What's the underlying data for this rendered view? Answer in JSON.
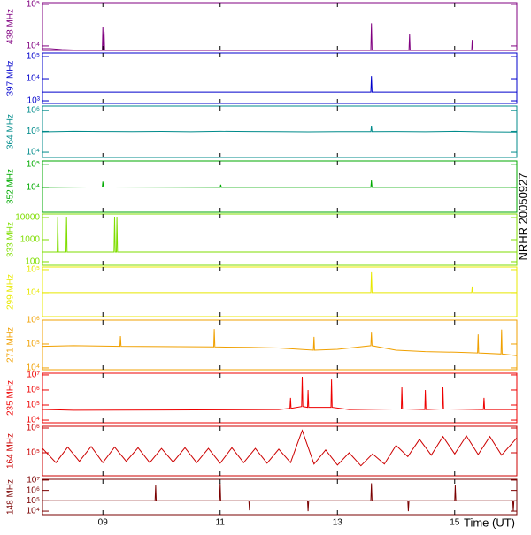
{
  "side_label": "NRHR 20050927",
  "chart_data": [
    {
      "type": "line",
      "ylabel": "438 MHz",
      "color": "#800080",
      "log": true,
      "xlim": [
        7.97,
        16.06
      ],
      "ylim": [
        7800,
        110000
      ],
      "yticks": [
        {
          "value": 10000,
          "label": "10⁴"
        },
        {
          "value": 100000,
          "label": "10⁵"
        }
      ],
      "x": [
        7.97,
        8.1,
        8.3,
        8.5,
        8.99,
        9.0,
        9.01,
        9.02,
        9.03,
        11,
        13.57,
        13.58,
        13.59,
        14.22,
        14.23,
        14.24,
        15.29,
        15.3,
        15.31,
        16.06
      ],
      "values": [
        8600,
        8600,
        8200,
        8000,
        8000,
        29000,
        8000,
        22000,
        8000,
        8000,
        8000,
        35000,
        8000,
        8000,
        19000,
        8000,
        8000,
        14000,
        8000,
        8000
      ]
    },
    {
      "type": "line",
      "ylabel": "397 MHz",
      "color": "#0000cc",
      "log": true,
      "xlim": [
        7.97,
        16.06
      ],
      "ylim": [
        760,
        145000
      ],
      "yticks": [
        {
          "value": 1000,
          "label": "10³"
        },
        {
          "value": 10000,
          "label": "10⁴"
        },
        {
          "value": 100000,
          "label": "10⁵"
        }
      ],
      "x": [
        7.97,
        13.57,
        13.58,
        13.59,
        16.06
      ],
      "values": [
        2500,
        2500,
        13000,
        2500,
        2500
      ]
    },
    {
      "type": "line",
      "ylabel": "364 MHz",
      "color": "#008b8b",
      "log": true,
      "xlim": [
        7.97,
        16.06
      ],
      "ylim": [
        5600,
        1600000
      ],
      "yticks": [
        {
          "value": 10000,
          "label": "10⁴"
        },
        {
          "value": 100000,
          "label": "10⁵"
        },
        {
          "value": 1000000,
          "label": "10⁶"
        }
      ],
      "x": [
        7.97,
        8.5,
        9.0,
        9.5,
        10,
        10.5,
        11,
        11.5,
        12,
        12.5,
        13,
        13.57,
        13.58,
        13.59,
        14,
        14.5,
        15,
        15.5,
        16.06
      ],
      "values": [
        95000,
        100000,
        98000,
        97000,
        99000,
        96000,
        100000,
        98000,
        97000,
        95000,
        97000,
        97000,
        180000,
        97000,
        98000,
        96000,
        100000,
        95000,
        93000
      ]
    },
    {
      "type": "line",
      "ylabel": "352 MHz",
      "color": "#00aa00",
      "log": true,
      "xlim": [
        7.97,
        16.06
      ],
      "ylim": [
        840,
        140000
      ],
      "yticks": [
        {
          "value": 10000,
          "label": "10⁴"
        },
        {
          "value": 100000,
          "label": "10⁵"
        }
      ],
      "x": [
        7.97,
        8.99,
        9.0,
        9.01,
        11.0,
        11.01,
        11.02,
        13.57,
        13.58,
        13.59,
        16.06
      ],
      "values": [
        10000,
        10500,
        18000,
        10500,
        10000,
        13000,
        10000,
        10000,
        20000,
        10000,
        10000
      ]
    },
    {
      "type": "line",
      "ylabel": "333 MHz",
      "color": "#7fdd00",
      "log": true,
      "xlim": [
        7.97,
        16.06
      ],
      "ylim": [
        69,
        14500
      ],
      "yticks": [
        100,
        1000,
        10000
      ],
      "x": [
        7.97,
        8.22,
        8.23,
        8.24,
        8.37,
        8.38,
        8.39,
        9.19,
        9.2,
        9.21,
        9.23,
        9.24,
        9.25,
        16.06
      ],
      "values": [
        275,
        275,
        11000,
        275,
        275,
        11000,
        275,
        275,
        11000,
        275,
        275,
        11000,
        275,
        275
      ]
    },
    {
      "type": "line",
      "ylabel": "299 MHz",
      "color": "#e8e800",
      "log": true,
      "xlim": [
        7.97,
        16.06
      ],
      "ylim": [
        910,
        130000
      ],
      "yticks": [
        {
          "value": 10000,
          "label": "10⁴"
        },
        {
          "value": 100000,
          "label": "10⁵"
        }
      ],
      "x": [
        7.97,
        13.57,
        13.58,
        13.59,
        15.29,
        15.3,
        15.31,
        16.06
      ],
      "values": [
        10000,
        10000,
        77000,
        10000,
        10000,
        18600,
        10000,
        10000
      ]
    },
    {
      "type": "line",
      "ylabel": "271 MHz",
      "color": "#f0a000",
      "log": true,
      "xlim": [
        7.97,
        16.06
      ],
      "ylim": [
        8400,
        1000000
      ],
      "yticks": [
        {
          "value": 10000,
          "label": "10⁴"
        },
        {
          "value": 100000,
          "label": "10⁵"
        },
        {
          "value": 1000000,
          "label": "10⁶"
        }
      ],
      "x": [
        7.97,
        8.5,
        9.29,
        9.3,
        9.31,
        10,
        10.89,
        10.9,
        10.91,
        11.5,
        12,
        12.59,
        12.6,
        12.61,
        13,
        13.57,
        13.58,
        13.59,
        14,
        14.5,
        15,
        15.39,
        15.4,
        15.41,
        15.79,
        15.8,
        15.81,
        16.06
      ],
      "values": [
        80000,
        85000,
        80000,
        215000,
        80000,
        78000,
        75000,
        420000,
        75000,
        72000,
        68000,
        55000,
        200000,
        55000,
        60000,
        85000,
        300000,
        85000,
        55000,
        48000,
        45000,
        42000,
        250000,
        42000,
        38000,
        400000,
        38000,
        32000
      ]
    },
    {
      "type": "line",
      "ylabel": "235 MHz",
      "color": "#ee0000",
      "log": true,
      "xlim": [
        7.97,
        16.06
      ],
      "ylim": [
        6700,
        13000000
      ],
      "yticks": [
        {
          "value": 10000,
          "label": "10⁴"
        },
        {
          "value": 100000,
          "label": "10⁵"
        },
        {
          "value": 1000000,
          "label": "10⁶"
        },
        {
          "value": 10000000,
          "label": "10⁷"
        }
      ],
      "x": [
        7.97,
        8.5,
        10,
        12,
        12.19,
        12.2,
        12.21,
        12.39,
        12.4,
        12.41,
        12.49,
        12.5,
        12.51,
        12.89,
        12.9,
        12.91,
        13.2,
        14.09,
        14.1,
        14.11,
        14.49,
        14.5,
        14.51,
        14.79,
        14.8,
        14.81,
        15.49,
        15.5,
        15.51,
        16.06
      ],
      "values": [
        51000,
        45000,
        47000,
        50000,
        60000,
        300000,
        60000,
        80000,
        7600000,
        80000,
        70000,
        1000000,
        70000,
        70000,
        5000000,
        70000,
        50000,
        55000,
        1500000,
        55000,
        50000,
        1000000,
        50000,
        55000,
        1500000,
        55000,
        50000,
        300000,
        50000,
        50000
      ]
    },
    {
      "type": "line",
      "ylabel": "164 MHz",
      "color": "#cc0000",
      "log": true,
      "xlim": [
        7.97,
        16.06
      ],
      "ylim": [
        11800,
        1180000
      ],
      "yticks": [
        {
          "value": 100000,
          "label": "10⁵"
        },
        {
          "value": 1000000,
          "label": "10⁶"
        }
      ],
      "x": [
        7.97,
        8.2,
        8.4,
        8.6,
        8.8,
        9.0,
        9.2,
        9.4,
        9.6,
        9.8,
        10.0,
        10.2,
        10.4,
        10.6,
        10.8,
        11.0,
        11.2,
        11.4,
        11.6,
        11.8,
        12.0,
        12.2,
        12.4,
        12.6,
        12.8,
        13.0,
        13.2,
        13.4,
        13.6,
        13.8,
        14.0,
        14.2,
        14.4,
        14.6,
        14.8,
        15.0,
        15.2,
        15.4,
        15.6,
        15.8,
        16.06
      ],
      "values": [
        150000,
        40000,
        170000,
        45000,
        180000,
        40000,
        170000,
        45000,
        160000,
        40000,
        150000,
        42000,
        160000,
        40000,
        150000,
        38000,
        160000,
        40000,
        150000,
        38000,
        140000,
        40000,
        800000,
        35000,
        130000,
        32000,
        100000,
        30000,
        90000,
        35000,
        200000,
        70000,
        350000,
        80000,
        450000,
        90000,
        480000,
        85000,
        450000,
        80000,
        400000
      ]
    },
    {
      "type": "line",
      "ylabel": "148 MHz",
      "color": "#7a0000",
      "log": true,
      "xlim": [
        7.97,
        16.06
      ],
      "ylim": [
        4600,
        12000000
      ],
      "yticks": [
        {
          "value": 10000,
          "label": "10⁴"
        },
        {
          "value": 100000,
          "label": "10⁵"
        },
        {
          "value": 1000000,
          "label": "10⁶"
        },
        {
          "value": 10000000,
          "label": "10⁷"
        }
      ],
      "xlabel": "Time (UT)",
      "xticks": [
        {
          "value": 9,
          "label": "09"
        },
        {
          "value": 11,
          "label": "11"
        },
        {
          "value": 13,
          "label": "13"
        },
        {
          "value": 15,
          "label": "15"
        }
      ],
      "x": [
        7.97,
        8.5,
        9.89,
        9.9,
        9.91,
        10.99,
        11.0,
        11.01,
        11.49,
        11.5,
        11.51,
        12.49,
        12.5,
        12.51,
        13.57,
        13.58,
        13.59,
        14.2,
        14.21,
        14.22,
        15.0,
        15.01,
        15.02,
        15.99,
        16.0,
        16.01,
        16.06
      ],
      "values": [
        100000,
        100000,
        100000,
        3000000,
        100000,
        100000,
        5000000,
        100000,
        100000,
        12000,
        100000,
        100000,
        10000,
        100000,
        100000,
        5000000,
        100000,
        100000,
        10000,
        100000,
        100000,
        3000000,
        100000,
        100000,
        10000,
        100000,
        100000
      ]
    }
  ]
}
